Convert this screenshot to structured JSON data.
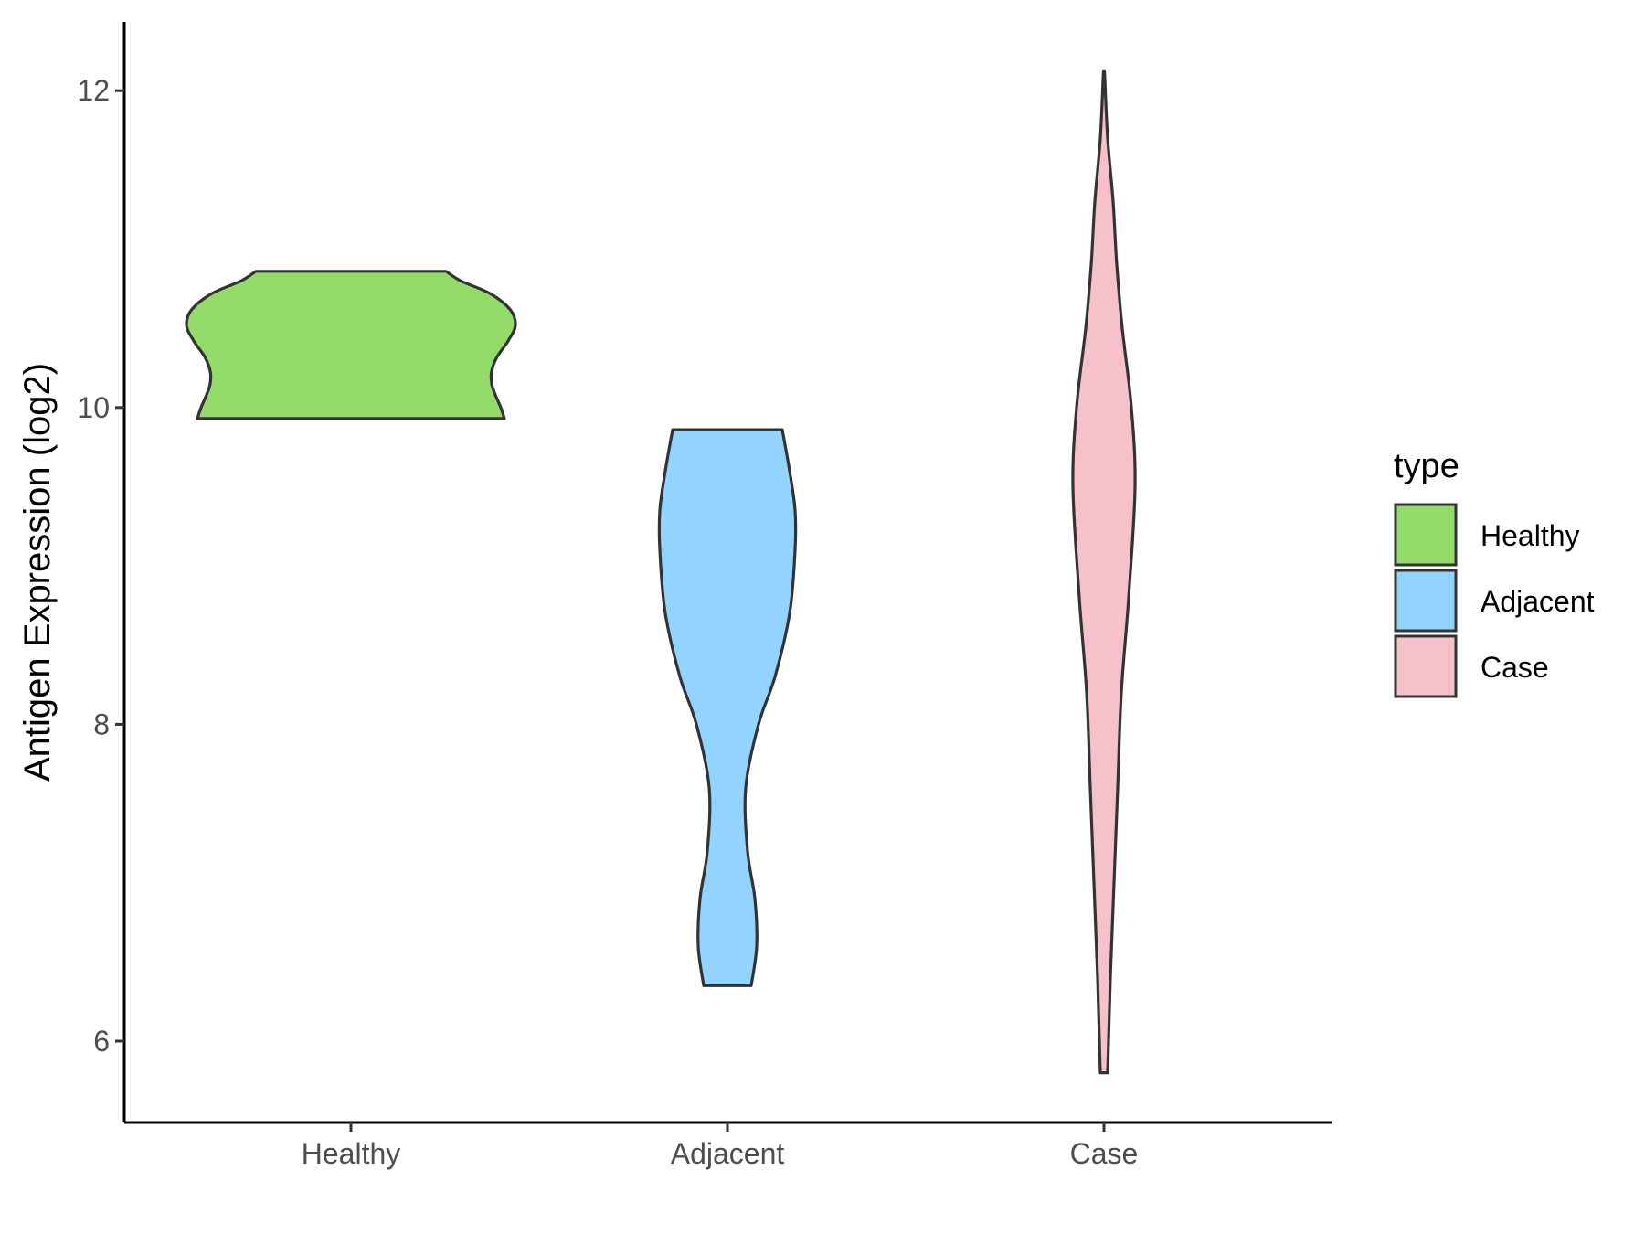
{
  "chart_data": {
    "type": "violin",
    "title": "",
    "xlabel": "",
    "ylabel": "Antigen Expression (log2)",
    "ylim": [
      5.5,
      12.45
    ],
    "yticks": [
      6,
      8,
      10,
      12
    ],
    "grid": false,
    "legend": {
      "title": "type",
      "position": "right",
      "entries": [
        {
          "label": "Healthy",
          "color": "#93dc6a"
        },
        {
          "label": "Adjacent",
          "color": "#93d3ff"
        },
        {
          "label": "Case",
          "color": "#f7c1cc"
        }
      ]
    },
    "categories": [
      "Healthy",
      "Adjacent",
      "Case"
    ],
    "outline_color": "#333333",
    "series": [
      {
        "category": "Healthy",
        "color": "#93dc6a",
        "min": 9.93,
        "max": 10.86,
        "density_profile": [
          [
            9.93,
            0.84
          ],
          [
            10.0,
            0.82
          ],
          [
            10.08,
            0.79
          ],
          [
            10.15,
            0.77
          ],
          [
            10.23,
            0.77
          ],
          [
            10.32,
            0.8
          ],
          [
            10.42,
            0.86
          ],
          [
            10.52,
            0.9
          ],
          [
            10.62,
            0.87
          ],
          [
            10.72,
            0.76
          ],
          [
            10.8,
            0.6
          ],
          [
            10.86,
            0.52
          ]
        ]
      },
      {
        "category": "Adjacent",
        "color": "#93d3ff",
        "min": 6.35,
        "max": 9.86,
        "density_profile": [
          [
            6.35,
            0.13
          ],
          [
            6.6,
            0.16
          ],
          [
            6.9,
            0.15
          ],
          [
            7.2,
            0.11
          ],
          [
            7.6,
            0.1
          ],
          [
            8.0,
            0.17
          ],
          [
            8.3,
            0.26
          ],
          [
            8.7,
            0.34
          ],
          [
            9.1,
            0.37
          ],
          [
            9.35,
            0.37
          ],
          [
            9.6,
            0.34
          ],
          [
            9.86,
            0.3
          ]
        ]
      },
      {
        "category": "Case",
        "color": "#f7c1cc",
        "min": 5.8,
        "max": 12.12,
        "density_profile": [
          [
            5.8,
            0.02
          ],
          [
            6.0,
            0.025
          ],
          [
            6.4,
            0.035
          ],
          [
            7.0,
            0.055
          ],
          [
            7.6,
            0.075
          ],
          [
            8.2,
            0.095
          ],
          [
            8.8,
            0.135
          ],
          [
            9.5,
            0.17
          ],
          [
            10.0,
            0.15
          ],
          [
            10.5,
            0.1
          ],
          [
            10.9,
            0.07
          ],
          [
            11.3,
            0.05
          ],
          [
            11.7,
            0.02
          ],
          [
            12.12,
            0.003
          ]
        ]
      }
    ]
  }
}
